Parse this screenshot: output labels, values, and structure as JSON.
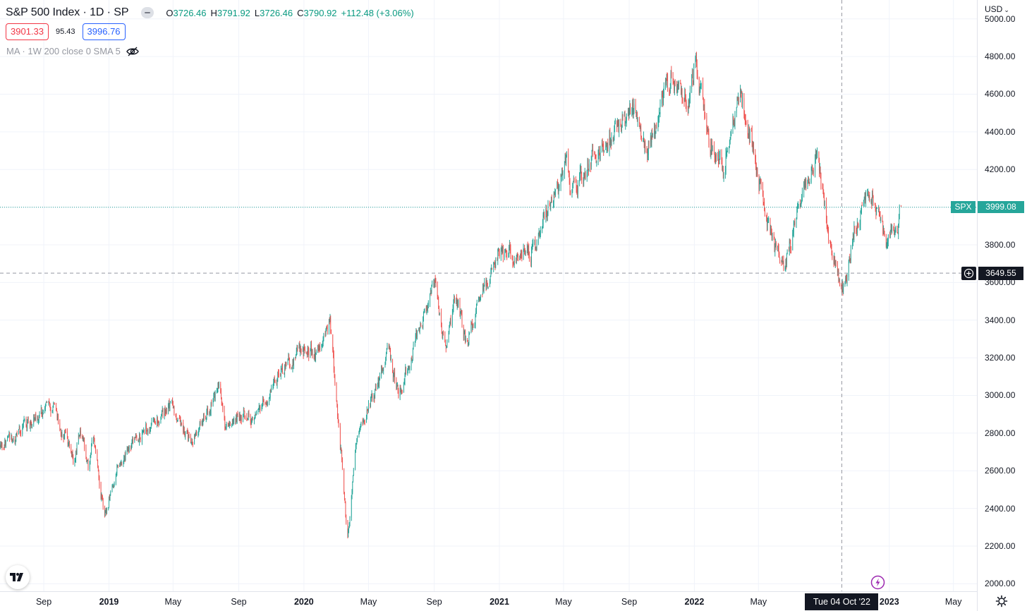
{
  "header": {
    "symbol_title": "S&P 500 Index · 1D · SP",
    "ohlc": {
      "open_key": "O",
      "open": "3726.46",
      "high_key": "H",
      "high": "3791.92",
      "low_key": "L",
      "low": "3726.46",
      "close_key": "C",
      "close": "3790.92",
      "change": "+112.48 (+3.06%)"
    },
    "sell_price": "3901.33",
    "spread": "95.43",
    "buy_price": "3996.76",
    "indicator_label": "MA · 1W 200 close 0 SMA 5",
    "icons": {
      "collapse": "collapse-icon",
      "visibility": "eye-off-icon"
    }
  },
  "price_scale": {
    "currency": "USD",
    "ticks": [
      "5000.00",
      "4800.00",
      "4600.00",
      "4400.00",
      "4200.00",
      "4000.00",
      "3800.00",
      "3600.00",
      "3400.00",
      "3200.00",
      "3000.00",
      "2800.00",
      "2600.00",
      "2400.00",
      "2200.00",
      "2000.00"
    ],
    "last_price_tag": "SPX",
    "last_price": "3999.08",
    "crosshair_price": "3649.55"
  },
  "time_scale": {
    "ticks": [
      {
        "label": "Sep",
        "date": "2018-09-01",
        "bold": false
      },
      {
        "label": "2019",
        "date": "2019-01-01",
        "bold": true
      },
      {
        "label": "May",
        "date": "2019-05-01",
        "bold": false
      },
      {
        "label": "Sep",
        "date": "2019-09-01",
        "bold": false
      },
      {
        "label": "2020",
        "date": "2020-01-01",
        "bold": true
      },
      {
        "label": "May",
        "date": "2020-05-01",
        "bold": false
      },
      {
        "label": "Sep",
        "date": "2020-09-01",
        "bold": false
      },
      {
        "label": "2021",
        "date": "2021-01-01",
        "bold": true
      },
      {
        "label": "May",
        "date": "2021-05-01",
        "bold": false
      },
      {
        "label": "Sep",
        "date": "2021-09-01",
        "bold": false
      },
      {
        "label": "2022",
        "date": "2022-01-01",
        "bold": true
      },
      {
        "label": "May",
        "date": "2022-05-01",
        "bold": false
      },
      {
        "label": "2023",
        "date": "2023-01-01",
        "bold": true
      },
      {
        "label": "May",
        "date": "2023-05-01",
        "bold": false
      }
    ],
    "crosshair_date": "Tue 04 Oct '22"
  },
  "icons": {
    "logo": "tradingview-logo-icon",
    "bolt": "lightning-bolt-icon",
    "settings": "gear-icon",
    "crosshair_add": "plus-circle-icon"
  },
  "colors": {
    "up": "#26a69a",
    "down": "#ef5350",
    "grid": "#f0f3fa",
    "last_price_line": "#26a69a",
    "crosshair": "#9598a1"
  },
  "chart_data": {
    "type": "candlestick",
    "title": "S&P 500 Index · 1D · SP",
    "ylabel": "USD",
    "ylim": [
      1960,
      5100
    ],
    "xlim": [
      "2018-06-11",
      "2023-06-14"
    ],
    "last_price": 3999.08,
    "crosshair": {
      "date": "2022-10-04",
      "price": 3649.55
    },
    "close_path": [
      [
        "2018-06-11",
        2730
      ],
      [
        "2018-07-15",
        2800
      ],
      [
        "2018-08-31",
        2905
      ],
      [
        "2018-09-20",
        2935
      ],
      [
        "2018-10-10",
        2790
      ],
      [
        "2018-10-29",
        2640
      ],
      [
        "2018-11-07",
        2810
      ],
      [
        "2018-11-23",
        2630
      ],
      [
        "2018-12-03",
        2790
      ],
      [
        "2018-12-24",
        2350
      ],
      [
        "2019-01-15",
        2610
      ],
      [
        "2019-03-01",
        2800
      ],
      [
        "2019-04-30",
        2945
      ],
      [
        "2019-06-03",
        2745
      ],
      [
        "2019-07-26",
        3025
      ],
      [
        "2019-08-06",
        2845
      ],
      [
        "2019-08-26",
        2880
      ],
      [
        "2019-10-02",
        2890
      ],
      [
        "2019-11-15",
        3120
      ],
      [
        "2019-12-31",
        3230
      ],
      [
        "2020-01-31",
        3230
      ],
      [
        "2020-02-19",
        3385
      ],
      [
        "2020-03-09",
        2750
      ],
      [
        "2020-03-23",
        2237
      ],
      [
        "2020-04-08",
        2750
      ],
      [
        "2020-06-08",
        3230
      ],
      [
        "2020-06-26",
        3010
      ],
      [
        "2020-09-02",
        3580
      ],
      [
        "2020-09-23",
        3240
      ],
      [
        "2020-10-12",
        3535
      ],
      [
        "2020-10-30",
        3270
      ],
      [
        "2020-12-31",
        3756
      ],
      [
        "2021-03-04",
        3770
      ],
      [
        "2021-05-07",
        4230
      ],
      [
        "2021-05-12",
        4060
      ],
      [
        "2021-07-30",
        4395
      ],
      [
        "2021-09-02",
        4535
      ],
      [
        "2021-10-04",
        4300
      ],
      [
        "2021-11-18",
        4705
      ],
      [
        "2021-12-20",
        4570
      ],
      [
        "2022-01-03",
        4796
      ],
      [
        "2022-01-27",
        4330
      ],
      [
        "2022-02-24",
        4225
      ],
      [
        "2022-03-29",
        4630
      ],
      [
        "2022-05-02",
        4155
      ],
      [
        "2022-05-20",
        3900
      ],
      [
        "2022-06-16",
        3666
      ],
      [
        "2022-07-29",
        4130
      ],
      [
        "2022-08-16",
        4305
      ],
      [
        "2022-09-06",
        3910
      ],
      [
        "2022-09-30",
        3585
      ],
      [
        "2022-10-12",
        3577
      ],
      [
        "2022-10-28",
        3901
      ],
      [
        "2022-11-30",
        4080
      ],
      [
        "2022-12-28",
        3783
      ],
      [
        "2023-01-09",
        3892
      ],
      [
        "2023-01-18",
        3928
      ],
      [
        "2023-01-23",
        3999
      ]
    ]
  }
}
